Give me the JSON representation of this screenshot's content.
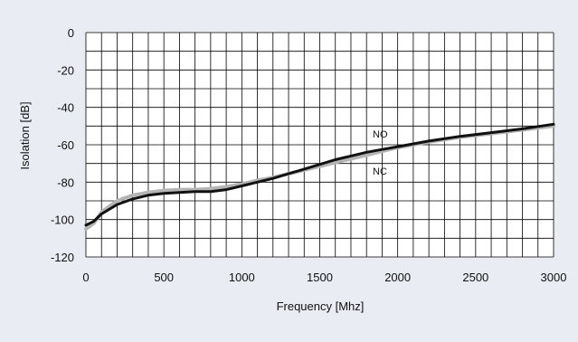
{
  "chart_data": {
    "type": "line",
    "title": "",
    "xlabel": "Frequency [Mhz]",
    "ylabel": "Isolation [dB]",
    "xlim": [
      0,
      3000
    ],
    "ylim": [
      -120,
      0
    ],
    "x_ticks": [
      0,
      500,
      1000,
      1500,
      2000,
      2500,
      3000
    ],
    "y_ticks": [
      0,
      -20,
      -40,
      -60,
      -80,
      -100,
      -120
    ],
    "grid": true,
    "legend": "none",
    "annotations": [
      {
        "text": "NO",
        "series": "NO"
      },
      {
        "text": "NC",
        "series": "NC"
      }
    ],
    "colors": {
      "background": "#e9ecf2",
      "plot_background": "#ffffff",
      "grid": "#000000",
      "NO": "#111111",
      "NC": "#b4b4b4"
    },
    "series": [
      {
        "name": "NO",
        "color": "#111111",
        "x": [
          0,
          50,
          100,
          200,
          300,
          400,
          500,
          600,
          700,
          800,
          900,
          1000,
          1100,
          1200,
          1300,
          1400,
          1500,
          1600,
          1700,
          1800,
          1900,
          2000,
          2200,
          2400,
          2600,
          2800,
          3000
        ],
        "y": [
          -103,
          -101,
          -97,
          -92,
          -89,
          -87,
          -86,
          -85.5,
          -85,
          -85,
          -84,
          -82,
          -80,
          -78,
          -75.5,
          -73,
          -70.5,
          -68,
          -66,
          -64,
          -62.5,
          -61,
          -58,
          -55.5,
          -53.5,
          -51.5,
          -49
        ]
      },
      {
        "name": "NC",
        "color": "#b4b4b4",
        "x": [
          0,
          50,
          100,
          200,
          300,
          400,
          500,
          600,
          700,
          800,
          900,
          1000,
          1100,
          1200,
          1300,
          1400,
          1500,
          1600,
          1700,
          1800,
          1900,
          2000,
          2200,
          2400,
          2600,
          2800,
          3000
        ],
        "y": [
          -105,
          -102,
          -96,
          -90,
          -87,
          -85.5,
          -84.5,
          -84,
          -84,
          -83.5,
          -82.5,
          -81,
          -79,
          -77.5,
          -75.5,
          -73.5,
          -71.5,
          -69.5,
          -67.5,
          -65.5,
          -63.5,
          -61.5,
          -58.5,
          -56,
          -54,
          -52,
          -50
        ]
      }
    ]
  }
}
